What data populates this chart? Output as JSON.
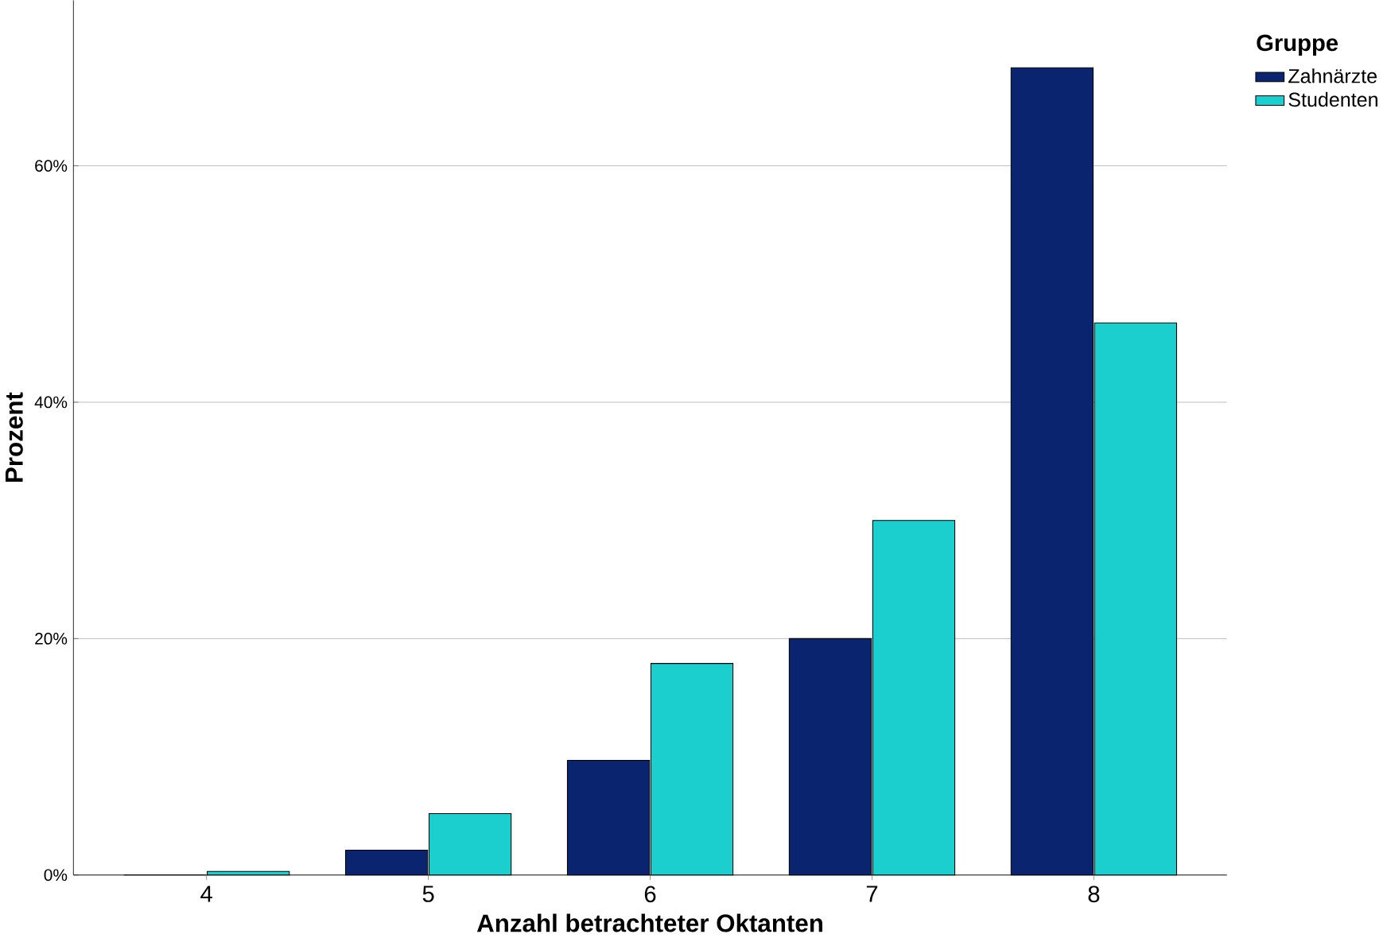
{
  "chart_data": {
    "type": "bar",
    "xlabel": "Anzahl betrachteter Oktanten",
    "ylabel": "Prozent",
    "legend_title": "Gruppe",
    "categories": [
      "4",
      "5",
      "6",
      "7",
      "8"
    ],
    "series": [
      {
        "name": "Zahnärzte",
        "color": "#0b2470",
        "values": [
          0,
          2.1,
          9.7,
          20.0,
          68.3
        ]
      },
      {
        "name": "Studenten",
        "color": "#1ccfcf",
        "values": [
          0.3,
          5.2,
          17.9,
          30.0,
          46.7
        ]
      }
    ],
    "ylim": [
      0,
      74
    ],
    "yticks": [
      {
        "value": 0,
        "label": "0%"
      },
      {
        "value": 20,
        "label": "20%"
      },
      {
        "value": 40,
        "label": "40%"
      },
      {
        "value": 60,
        "label": "60%"
      }
    ],
    "grid": "y",
    "legend": "top right"
  }
}
